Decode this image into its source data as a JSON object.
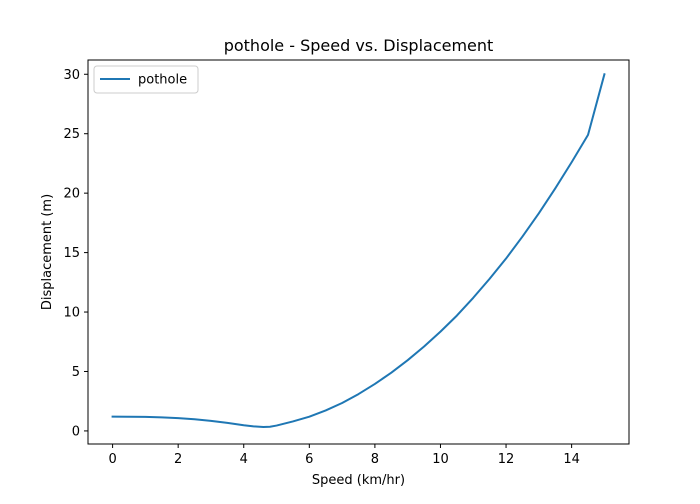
{
  "chart_data": {
    "type": "line",
    "title": "pothole - Speed vs. Displacement",
    "xlabel": "Speed (km/hr)",
    "ylabel": "Displacement (m)",
    "xlim": [
      -0.75,
      15.75
    ],
    "ylim": [
      -1.1,
      31.2
    ],
    "xticks": [
      0,
      2,
      4,
      6,
      8,
      10,
      12,
      14
    ],
    "yticks": [
      0,
      5,
      10,
      15,
      20,
      25,
      30
    ],
    "grid": false,
    "legend": "top-left",
    "colors": {
      "series": "#1f77b4",
      "axes": "#000000",
      "background": "#ffffff"
    },
    "series": [
      {
        "name": "pothole",
        "color": "#1f77b4",
        "x": [
          0,
          0.5,
          1,
          1.5,
          2,
          2.5,
          3,
          3.5,
          4,
          4.3,
          4.6,
          4.8,
          5,
          5.5,
          6,
          6.5,
          7,
          7.5,
          8,
          8.5,
          9,
          9.5,
          10,
          10.5,
          11,
          11.5,
          12,
          12.5,
          13,
          13.5,
          14,
          14.5,
          15
        ],
        "y": [
          1.2,
          1.19,
          1.18,
          1.14,
          1.08,
          0.98,
          0.85,
          0.68,
          0.48,
          0.38,
          0.33,
          0.35,
          0.45,
          0.8,
          1.2,
          1.72,
          2.35,
          3.1,
          3.95,
          4.9,
          5.95,
          7.1,
          8.35,
          9.7,
          11.2,
          12.8,
          14.5,
          16.35,
          18.3,
          20.4,
          22.6,
          24.9,
          30.0
        ]
      }
    ]
  }
}
